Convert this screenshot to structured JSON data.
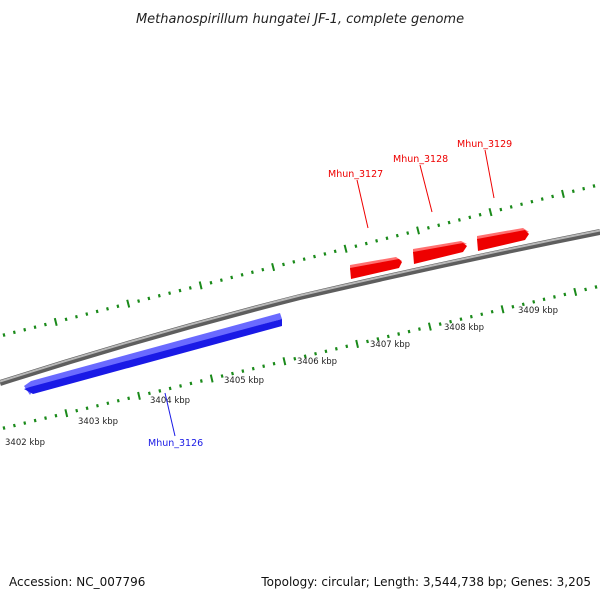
{
  "title": "Methanospirillum hungatei JF-1, complete genome",
  "footer": {
    "accession": "Accession: NC_007796",
    "topology": "Topology: circular; Length: 3,544,738 bp; Genes: 3,205"
  },
  "colors": {
    "forward_gene": "#ee0000",
    "reverse_gene": "#1a1ae6",
    "tick": "#1a8a1a",
    "backbone": "#8a8a8a"
  },
  "scale": {
    "unit": "kbp",
    "labels": [
      "3402 kbp",
      "3403 kbp",
      "3404 kbp",
      "3405 kbp",
      "3406 kbp",
      "3407 kbp",
      "3408 kbp",
      "3409 kbp"
    ]
  },
  "genes": [
    {
      "name": "Mhun_3126",
      "strand": "reverse"
    },
    {
      "name": "Mhun_3127",
      "strand": "forward"
    },
    {
      "name": "Mhun_3128",
      "strand": "forward"
    },
    {
      "name": "Mhun_3129",
      "strand": "forward"
    }
  ]
}
